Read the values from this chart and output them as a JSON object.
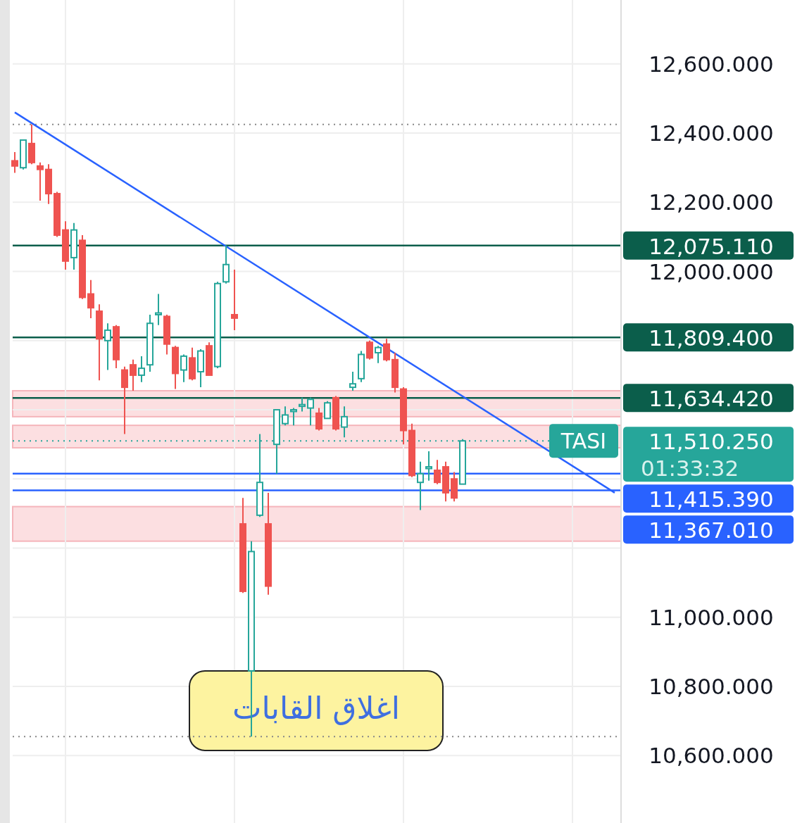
{
  "chart_data": {
    "type": "candlestick",
    "categories": [
      null,
      null,
      null,
      null,
      null,
      null,
      null,
      null,
      null,
      null,
      null,
      null,
      null,
      null,
      null,
      null,
      null,
      null,
      null,
      null,
      null,
      null,
      null,
      null,
      null,
      null,
      null,
      null,
      null,
      null,
      null,
      null,
      null,
      null,
      null,
      null,
      null,
      null,
      null,
      null,
      null,
      null,
      null,
      null,
      null,
      null,
      null,
      null,
      null,
      null,
      null,
      null,
      null,
      null,
      null,
      null,
      null,
      null,
      null,
      null,
      null,
      null,
      null,
      null,
      null,
      null,
      null,
      null,
      null,
      null,
      null,
      null
    ],
    "ohlc": [
      [
        12320,
        12345,
        12285,
        12305
      ],
      [
        12300,
        12380,
        12295,
        12380
      ],
      [
        12370,
        12425,
        12310,
        12315
      ],
      [
        12305,
        12315,
        12205,
        12295
      ],
      [
        12295,
        12310,
        12195,
        12225
      ],
      [
        12225,
        12230,
        12100,
        12105
      ],
      [
        12120,
        12145,
        12005,
        12030
      ],
      [
        12040,
        12140,
        12005,
        12120
      ],
      [
        12090,
        12105,
        11920,
        11925
      ],
      [
        11935,
        11975,
        11865,
        11895
      ],
      [
        11885,
        11905,
        11685,
        11805
      ],
      [
        11800,
        11850,
        11715,
        11830
      ],
      [
        11840,
        11845,
        11720,
        11745
      ],
      [
        11715,
        11725,
        11530,
        11665
      ],
      [
        11730,
        11745,
        11655,
        11700
      ],
      [
        11700,
        11755,
        11680,
        11720
      ],
      [
        11730,
        11875,
        11710,
        11850
      ],
      [
        11875,
        11935,
        11845,
        11880
      ],
      [
        11870,
        11875,
        11760,
        11790
      ],
      [
        11780,
        11785,
        11660,
        11705
      ],
      [
        11715,
        11760,
        11680,
        11755
      ],
      [
        11750,
        11780,
        11685,
        11690
      ],
      [
        11710,
        11775,
        11665,
        11770
      ],
      [
        11785,
        11795,
        11700,
        11700
      ],
      [
        11725,
        11970,
        11720,
        11965
      ],
      [
        11970,
        12075,
        11965,
        12020
      ],
      [
        11875,
        12005,
        11830,
        11865
      ],
      [
        11270,
        11345,
        11070,
        11075
      ],
      [
        10845,
        11220,
        10655,
        11190
      ],
      [
        11295,
        11530,
        11290,
        11390
      ],
      [
        11270,
        11360,
        11065,
        11090
      ],
      [
        11500,
        11600,
        11415,
        11600
      ],
      [
        11560,
        11610,
        11555,
        11585
      ],
      [
        11595,
        11605,
        11555,
        11600
      ],
      [
        11610,
        11635,
        11595,
        11615
      ],
      [
        11605,
        11635,
        11555,
        11630
      ],
      [
        11590,
        11605,
        11540,
        11545
      ],
      [
        11575,
        11625,
        11575,
        11620
      ],
      [
        11635,
        11640,
        11540,
        11545
      ],
      [
        11550,
        11610,
        11520,
        11580
      ],
      [
        11665,
        11710,
        11655,
        11675
      ],
      [
        11690,
        11770,
        11680,
        11760
      ],
      [
        11795,
        11800,
        11745,
        11750
      ],
      [
        11765,
        11785,
        11735,
        11780
      ],
      [
        11790,
        11805,
        11740,
        11745
      ],
      [
        11745,
        11765,
        11650,
        11665
      ],
      [
        11660,
        11665,
        11500,
        11540
      ],
      [
        11540,
        11560,
        11405,
        11410
      ],
      [
        11390,
        11450,
        11310,
        11415
      ],
      [
        11430,
        11480,
        11395,
        11435
      ],
      [
        11425,
        11455,
        11385,
        11390
      ],
      [
        11435,
        11450,
        11335,
        11360
      ],
      [
        11400,
        11420,
        11335,
        11345
      ],
      [
        11385,
        11515,
        11385,
        11510
      ],
      null,
      null,
      null,
      null,
      null,
      null,
      null,
      null,
      null,
      null,
      null,
      null,
      null,
      null,
      null,
      null,
      null,
      null
    ],
    "series": [
      {
        "type": "line",
        "color": "#2962ff",
        "values": [
          12460,
          null,
          null,
          null,
          null,
          null,
          null,
          null,
          null,
          null,
          null,
          null,
          null,
          null,
          null,
          null,
          null,
          null,
          null,
          null,
          null,
          null,
          null,
          null,
          null,
          null,
          null,
          null,
          null,
          null,
          null,
          null,
          null,
          null,
          null,
          null,
          null,
          null,
          null,
          null,
          null,
          null,
          null,
          null,
          null,
          null,
          null,
          null,
          null,
          null,
          null,
          null,
          null,
          null,
          null,
          null,
          null,
          null,
          null,
          null,
          null,
          null,
          null,
          null,
          null,
          null,
          null,
          null,
          null,
          null,
          null,
          11360
        ]
      }
    ],
    "ylim": [
      10405,
      12785
    ],
    "yticks": [
      {
        "value": 10600,
        "label": "10,600.000"
      },
      {
        "value": 10800,
        "label": "10,800.000"
      },
      {
        "value": 11000,
        "label": "11,000.000"
      },
      {
        "value": 11200,
        "label": null
      },
      {
        "value": 11400,
        "label": null
      },
      {
        "value": 11600,
        "label": null
      },
      {
        "value": 11800,
        "label": null
      },
      {
        "value": 12000,
        "label": "12,000.000"
      },
      {
        "value": 12200,
        "label": "12,200.000"
      },
      {
        "value": 12400,
        "label": "12,400.000"
      },
      {
        "value": 12600,
        "label": "12,600.000"
      }
    ],
    "grid": true,
    "bands": [
      {
        "axis": "y",
        "from": 11580,
        "to": 11655,
        "color": "#fbd7da"
      },
      {
        "axis": "y",
        "from": 11490,
        "to": 11555,
        "color": "#fbd7da"
      },
      {
        "axis": "y",
        "from": 11220,
        "to": 11320,
        "color": "#fbd7da"
      }
    ],
    "ref_lines": [
      {
        "axis": "y",
        "value": 12075.11,
        "label": "12,075.110",
        "color": "#0b5e4b"
      },
      {
        "axis": "y",
        "value": 11809.4,
        "label": "11,809.400",
        "color": "#0b5e4b"
      },
      {
        "axis": "y",
        "value": 11634.42,
        "label": "11,634.420",
        "color": "#0b5e4b"
      },
      {
        "axis": "y",
        "value": 11510.25,
        "label": "11,510.250",
        "color": "#26a69a",
        "line_style": "dotted"
      },
      {
        "axis": "y",
        "value": 11415.39,
        "label": "11,415.390",
        "color": "#2962ff"
      },
      {
        "axis": "y",
        "value": 11367.01,
        "label": "11,367.010",
        "color": "#2962ff"
      },
      {
        "axis": "y",
        "value": 12425,
        "color": "#888888",
        "line_style": "dotted"
      },
      {
        "axis": "y",
        "value": 10655,
        "color": "#888888",
        "line_style": "dotted"
      }
    ],
    "annotations": [
      {
        "text": "TASI",
        "y": 11510.25
      },
      "01:33:32",
      "اغلاق القابات"
    ]
  }
}
